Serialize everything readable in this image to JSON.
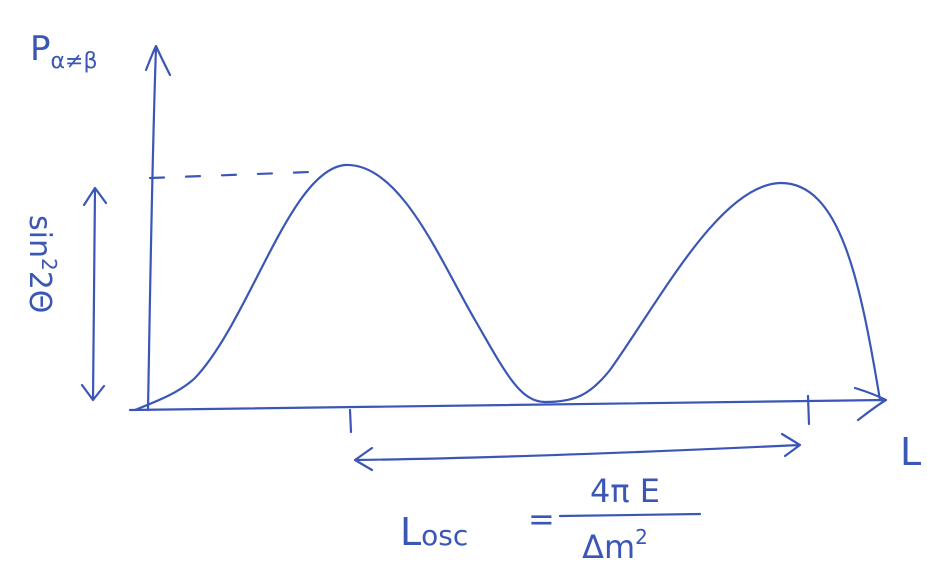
{
  "y_axis_label": {
    "main": "P",
    "subscript": "α≠β"
  },
  "x_axis_label": "L",
  "amplitude_label": {
    "main": "sin",
    "superscript": "2",
    "rest": "2Θ"
  },
  "formula": {
    "lhs": "L",
    "lhs_subscript": "osc",
    "equals": "=",
    "numerator": "4π E",
    "denominator": "Δm",
    "denominator_superscript": "2"
  }
}
